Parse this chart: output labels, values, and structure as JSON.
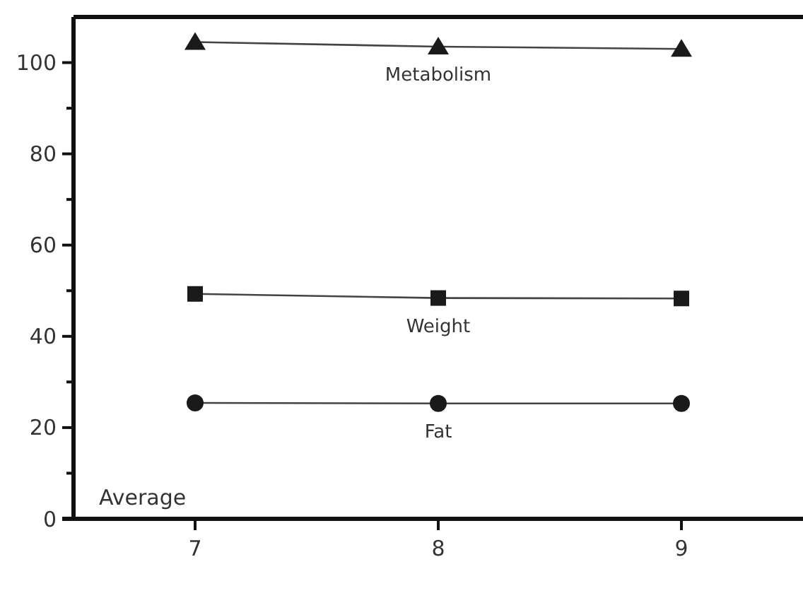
{
  "chart_data": {
    "type": "line",
    "x": [
      7,
      8,
      9
    ],
    "series": [
      {
        "name": "Metabolism",
        "color": "#1a1a1a",
        "marker": "triangle",
        "values": [
          104.5,
          103.5,
          103
        ]
      },
      {
        "name": "Weight",
        "color": "#1a1a1a",
        "marker": "square",
        "values": [
          49.3,
          48.4,
          48.3
        ]
      },
      {
        "name": "Fat",
        "color": "#1a1a1a",
        "marker": "circle",
        "values": [
          25.4,
          25.3,
          25.3
        ]
      }
    ],
    "xlim": [
      6.5,
      9.5
    ],
    "xticks": [
      7,
      8,
      9
    ],
    "ylim": [
      0,
      110
    ],
    "yticks": [
      0,
      {
        "value": 10,
        "label": null
      },
      20,
      {
        "value": 30,
        "label": null
      },
      40,
      {
        "value": 50,
        "label": null
      },
      60,
      {
        "value": 70,
        "label": null
      },
      80,
      {
        "value": 90,
        "label": null
      },
      100
    ],
    "annotations": [
      "Average"
    ],
    "grid": false,
    "line_style": "solid"
  }
}
